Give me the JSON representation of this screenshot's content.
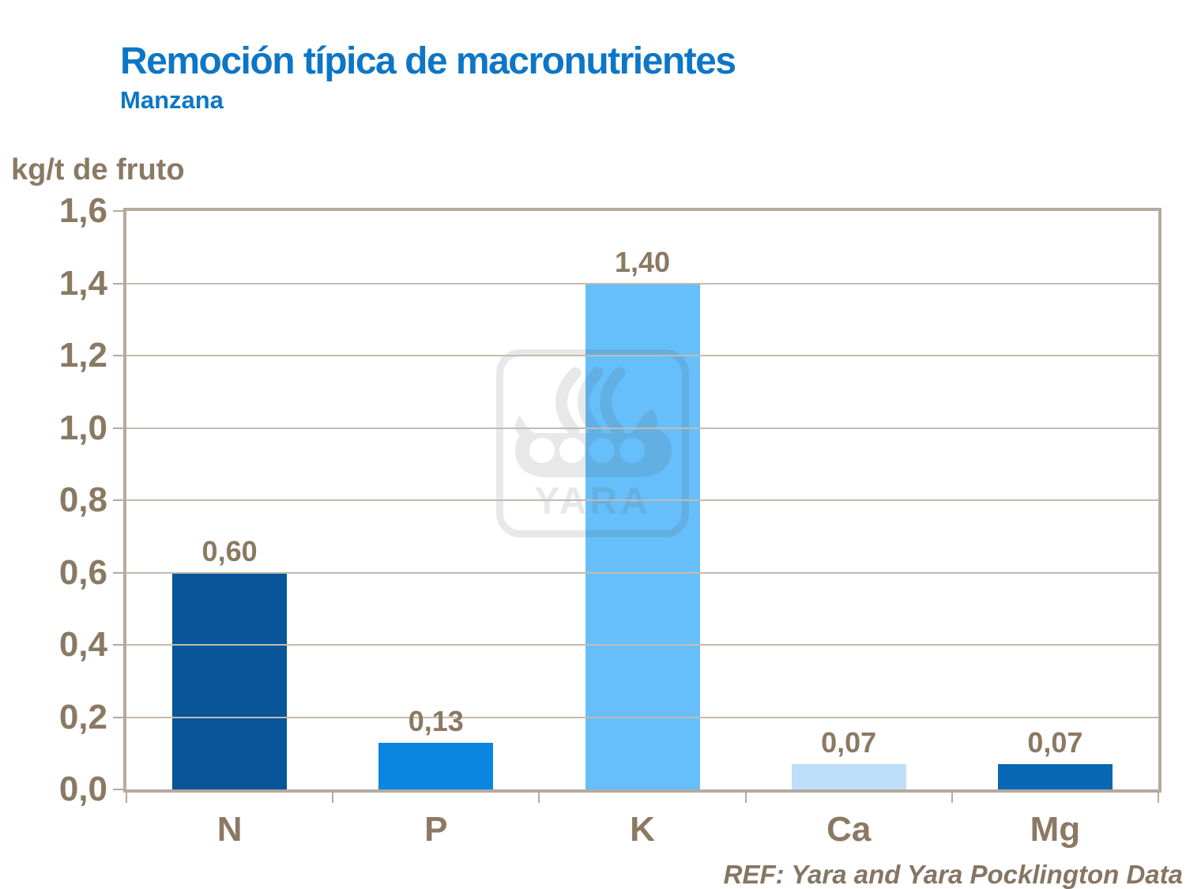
{
  "header": {
    "title": "Remoción típica de macronutrientes",
    "subtitle": "Manzana",
    "title_color": "#0D76C6"
  },
  "axis": {
    "unit_label": "kg/t de fruto"
  },
  "footer": {
    "reference": "REF: Yara and Yara Pocklington Data"
  },
  "watermark": {
    "text": "YARA"
  },
  "chart_data": {
    "type": "bar",
    "title": "Remoción típica de macronutrientes",
    "subtitle": "Manzana",
    "ylabel": "kg/t de fruto",
    "xlabel": "",
    "categories": [
      "N",
      "P",
      "K",
      "Ca",
      "Mg"
    ],
    "values": [
      0.6,
      0.13,
      1.4,
      0.07,
      0.07
    ],
    "value_labels": [
      "0,60",
      "0,13",
      "1,40",
      "0,07",
      "0,07"
    ],
    "bar_colors": [
      "#0A569B",
      "#0A86E1",
      "#66BFFA",
      "#BDDEF8",
      "#0767B3"
    ],
    "ylim": [
      0,
      1.6
    ],
    "ytick_step": 0.2,
    "ytick_labels": [
      "1,6",
      "1,4",
      "1,2",
      "1,0",
      "0,8",
      "0,6",
      "0,4",
      "0,2",
      "0,0"
    ],
    "grid": true,
    "legend": "none",
    "text_color": "#8A7963",
    "grid_color": "#C6BAAC",
    "axis_color": "#B5AA9D"
  }
}
